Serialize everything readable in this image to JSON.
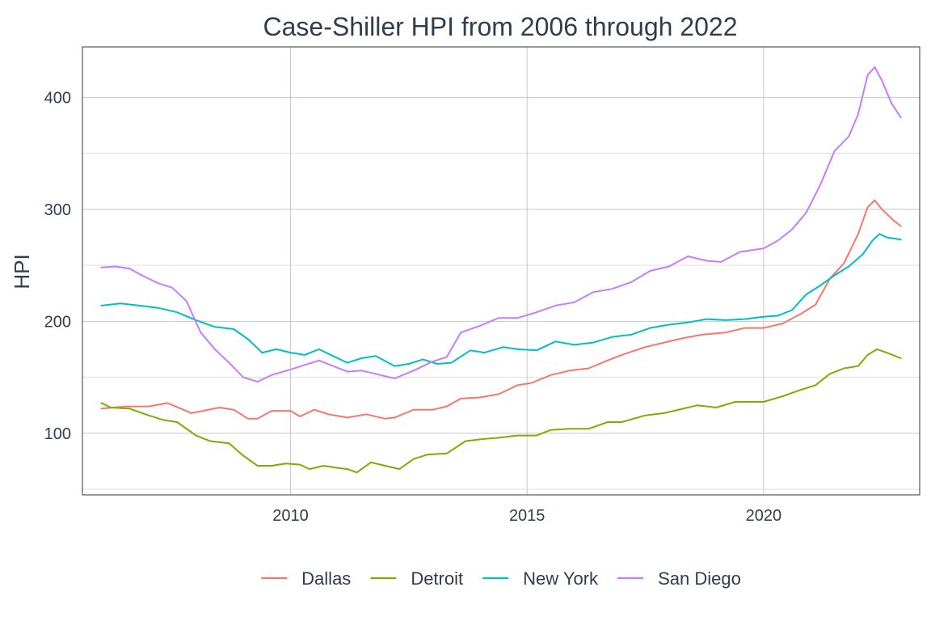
{
  "chart_data": {
    "type": "line",
    "title": "Case-Shiller HPI from 2006 through 2022",
    "xlabel": "",
    "ylabel": "HPI",
    "xlim": [
      2005.6,
      2023.3
    ],
    "ylim": [
      45,
      445
    ],
    "x_ticks": [
      2010,
      2015,
      2020
    ],
    "y_ticks": [
      100,
      200,
      300,
      400
    ],
    "grid": true,
    "legend_position": "bottom",
    "series": [
      {
        "name": "Dallas",
        "color": "#F8766D",
        "points": [
          [
            2006.0,
            122
          ],
          [
            2006.5,
            124
          ],
          [
            2007.0,
            124
          ],
          [
            2007.4,
            127
          ],
          [
            2007.9,
            118
          ],
          [
            2008.5,
            123
          ],
          [
            2008.8,
            121
          ],
          [
            2009.1,
            113
          ],
          [
            2009.3,
            113
          ],
          [
            2009.6,
            120
          ],
          [
            2010.0,
            120
          ],
          [
            2010.2,
            115
          ],
          [
            2010.5,
            121
          ],
          [
            2010.8,
            117
          ],
          [
            2011.2,
            114
          ],
          [
            2011.6,
            117
          ],
          [
            2012.0,
            113
          ],
          [
            2012.2,
            114
          ],
          [
            2012.6,
            121
          ],
          [
            2013.0,
            121
          ],
          [
            2013.3,
            124
          ],
          [
            2013.6,
            131
          ],
          [
            2014.0,
            132
          ],
          [
            2014.4,
            135
          ],
          [
            2014.8,
            143
          ],
          [
            2015.1,
            145
          ],
          [
            2015.5,
            152
          ],
          [
            2015.9,
            156
          ],
          [
            2016.3,
            158
          ],
          [
            2016.7,
            165
          ],
          [
            2017.0,
            170
          ],
          [
            2017.5,
            177
          ],
          [
            2017.9,
            181
          ],
          [
            2018.3,
            185
          ],
          [
            2018.7,
            188
          ],
          [
            2019.2,
            190
          ],
          [
            2019.6,
            194
          ],
          [
            2020.0,
            194
          ],
          [
            2020.4,
            198
          ],
          [
            2020.8,
            207
          ],
          [
            2021.1,
            215
          ],
          [
            2021.4,
            238
          ],
          [
            2021.7,
            252
          ],
          [
            2022.0,
            278
          ],
          [
            2022.2,
            302
          ],
          [
            2022.35,
            308
          ],
          [
            2022.5,
            300
          ],
          [
            2022.75,
            290
          ],
          [
            2022.9,
            285
          ]
        ]
      },
      {
        "name": "Detroit",
        "color": "#7CAE00",
        "points": [
          [
            2006.0,
            127
          ],
          [
            2006.2,
            123
          ],
          [
            2006.6,
            122
          ],
          [
            2007.0,
            116
          ],
          [
            2007.3,
            112
          ],
          [
            2007.6,
            110
          ],
          [
            2008.0,
            98
          ],
          [
            2008.3,
            93
          ],
          [
            2008.7,
            91
          ],
          [
            2009.0,
            80
          ],
          [
            2009.3,
            71
          ],
          [
            2009.6,
            71
          ],
          [
            2009.9,
            73
          ],
          [
            2010.2,
            72
          ],
          [
            2010.4,
            68
          ],
          [
            2010.7,
            71
          ],
          [
            2011.0,
            69
          ],
          [
            2011.2,
            68
          ],
          [
            2011.4,
            65
          ],
          [
            2011.7,
            74
          ],
          [
            2012.0,
            71
          ],
          [
            2012.3,
            68
          ],
          [
            2012.6,
            77
          ],
          [
            2012.9,
            81
          ],
          [
            2013.3,
            82
          ],
          [
            2013.7,
            93
          ],
          [
            2014.1,
            95
          ],
          [
            2014.4,
            96
          ],
          [
            2014.8,
            98
          ],
          [
            2015.2,
            98
          ],
          [
            2015.5,
            103
          ],
          [
            2015.9,
            104
          ],
          [
            2016.3,
            104
          ],
          [
            2016.7,
            110
          ],
          [
            2017.0,
            110
          ],
          [
            2017.5,
            116
          ],
          [
            2017.9,
            118
          ],
          [
            2018.3,
            122
          ],
          [
            2018.6,
            125
          ],
          [
            2019.0,
            123
          ],
          [
            2019.4,
            128
          ],
          [
            2019.7,
            128
          ],
          [
            2020.0,
            128
          ],
          [
            2020.4,
            133
          ],
          [
            2020.8,
            139
          ],
          [
            2021.1,
            143
          ],
          [
            2021.4,
            153
          ],
          [
            2021.7,
            158
          ],
          [
            2022.0,
            160
          ],
          [
            2022.2,
            170
          ],
          [
            2022.4,
            175
          ],
          [
            2022.6,
            172
          ],
          [
            2022.9,
            167
          ]
        ]
      },
      {
        "name": "New York",
        "color": "#00BFC4",
        "points": [
          [
            2006.0,
            214
          ],
          [
            2006.4,
            216
          ],
          [
            2006.8,
            214
          ],
          [
            2007.2,
            212
          ],
          [
            2007.6,
            208
          ],
          [
            2008.0,
            201
          ],
          [
            2008.4,
            195
          ],
          [
            2008.8,
            193
          ],
          [
            2009.1,
            184
          ],
          [
            2009.4,
            172
          ],
          [
            2009.7,
            175
          ],
          [
            2010.0,
            172
          ],
          [
            2010.3,
            170
          ],
          [
            2010.6,
            175
          ],
          [
            2010.9,
            169
          ],
          [
            2011.2,
            163
          ],
          [
            2011.5,
            167
          ],
          [
            2011.8,
            169
          ],
          [
            2012.2,
            160
          ],
          [
            2012.5,
            162
          ],
          [
            2012.8,
            166
          ],
          [
            2013.1,
            162
          ],
          [
            2013.4,
            163
          ],
          [
            2013.8,
            174
          ],
          [
            2014.1,
            172
          ],
          [
            2014.5,
            177
          ],
          [
            2014.8,
            175
          ],
          [
            2015.2,
            174
          ],
          [
            2015.6,
            182
          ],
          [
            2016.0,
            179
          ],
          [
            2016.4,
            181
          ],
          [
            2016.8,
            186
          ],
          [
            2017.2,
            188
          ],
          [
            2017.6,
            194
          ],
          [
            2018.0,
            197
          ],
          [
            2018.4,
            199
          ],
          [
            2018.8,
            202
          ],
          [
            2019.2,
            201
          ],
          [
            2019.6,
            202
          ],
          [
            2020.0,
            204
          ],
          [
            2020.3,
            205
          ],
          [
            2020.6,
            210
          ],
          [
            2020.9,
            224
          ],
          [
            2021.2,
            232
          ],
          [
            2021.5,
            241
          ],
          [
            2021.8,
            249
          ],
          [
            2022.1,
            260
          ],
          [
            2022.3,
            272
          ],
          [
            2022.45,
            278
          ],
          [
            2022.6,
            275
          ],
          [
            2022.9,
            273
          ]
        ]
      },
      {
        "name": "San Diego",
        "color": "#C77CFF",
        "points": [
          [
            2006.0,
            248
          ],
          [
            2006.3,
            249
          ],
          [
            2006.6,
            247
          ],
          [
            2006.9,
            240
          ],
          [
            2007.2,
            234
          ],
          [
            2007.5,
            230
          ],
          [
            2007.8,
            218
          ],
          [
            2008.1,
            190
          ],
          [
            2008.4,
            175
          ],
          [
            2008.7,
            163
          ],
          [
            2009.0,
            150
          ],
          [
            2009.3,
            146
          ],
          [
            2009.6,
            152
          ],
          [
            2010.0,
            157
          ],
          [
            2010.3,
            161
          ],
          [
            2010.6,
            165
          ],
          [
            2010.9,
            160
          ],
          [
            2011.2,
            155
          ],
          [
            2011.5,
            156
          ],
          [
            2011.9,
            152
          ],
          [
            2012.2,
            149
          ],
          [
            2012.6,
            156
          ],
          [
            2013.0,
            164
          ],
          [
            2013.3,
            168
          ],
          [
            2013.6,
            190
          ],
          [
            2014.0,
            196
          ],
          [
            2014.4,
            203
          ],
          [
            2014.8,
            203
          ],
          [
            2015.2,
            208
          ],
          [
            2015.6,
            214
          ],
          [
            2016.0,
            217
          ],
          [
            2016.4,
            226
          ],
          [
            2016.8,
            229
          ],
          [
            2017.2,
            235
          ],
          [
            2017.6,
            245
          ],
          [
            2018.0,
            249
          ],
          [
            2018.4,
            258
          ],
          [
            2018.8,
            254
          ],
          [
            2019.1,
            253
          ],
          [
            2019.5,
            262
          ],
          [
            2020.0,
            265
          ],
          [
            2020.3,
            272
          ],
          [
            2020.6,
            282
          ],
          [
            2020.9,
            297
          ],
          [
            2021.2,
            322
          ],
          [
            2021.5,
            352
          ],
          [
            2021.8,
            365
          ],
          [
            2022.0,
            385
          ],
          [
            2022.2,
            420
          ],
          [
            2022.35,
            427
          ],
          [
            2022.5,
            415
          ],
          [
            2022.7,
            395
          ],
          [
            2022.9,
            382
          ]
        ]
      }
    ]
  }
}
